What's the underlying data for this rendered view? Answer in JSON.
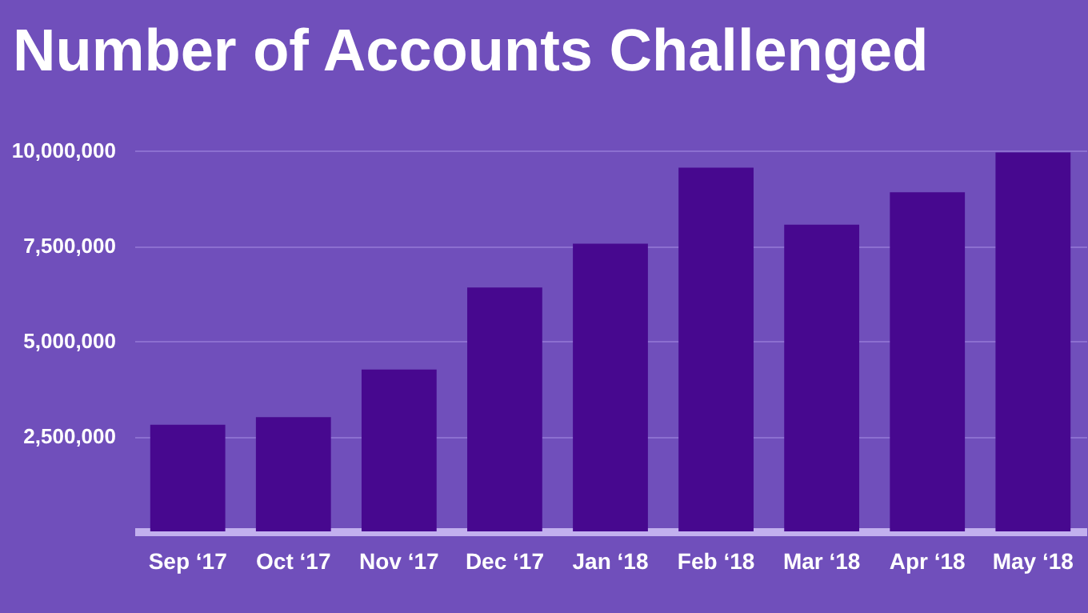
{
  "chart_data": {
    "type": "bar",
    "title": "Number of Accounts Challenged",
    "categories": [
      "Sep ‘17",
      "Oct ‘17",
      "Nov ‘17",
      "Dec ‘17",
      "Jan ‘18",
      "Feb ‘18",
      "Mar ‘18",
      "Apr ‘18",
      "May ‘18"
    ],
    "values": [
      2800000,
      3000000,
      4250000,
      6400000,
      7550000,
      9550000,
      8050000,
      8900000,
      9950000
    ],
    "color": "#47088f",
    "ylim": [
      0,
      10000000
    ],
    "yticks": [
      {
        "value": 2500000,
        "label": "2,500,000"
      },
      {
        "value": 5000000,
        "label": "5,000,000"
      },
      {
        "value": 7500000,
        "label": "7,500,000"
      },
      {
        "value": 10000000,
        "label": "10,000,000"
      }
    ],
    "grid": "y"
  }
}
